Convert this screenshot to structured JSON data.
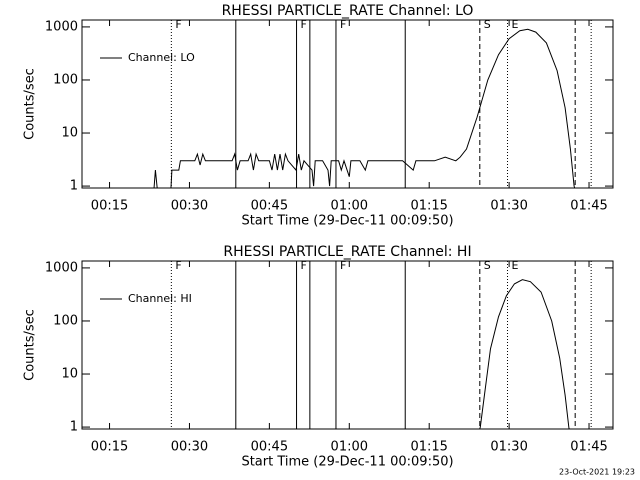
{
  "chart_data": [
    {
      "type": "line",
      "title": "RHESSI PARTICLE_RATE Channel: LO",
      "xlabel": "Start Time (29-Dec-11 00:09:50)",
      "ylabel": "Counts/sec",
      "log_y": true,
      "legend": "upper left",
      "xlim": [
        9.83,
        109.5
      ],
      "ylim": [
        0.92,
        1350
      ],
      "xticks": [
        {
          "value": 15,
          "label": "00:15"
        },
        {
          "value": 30,
          "label": "00:30"
        },
        {
          "value": 45,
          "label": "00:45"
        },
        {
          "value": 60,
          "label": "01:00"
        },
        {
          "value": 75,
          "label": "01:15"
        },
        {
          "value": 90,
          "label": "01:30"
        },
        {
          "value": 105,
          "label": "01:45"
        }
      ],
      "yticks": [
        1,
        10,
        100,
        1000
      ],
      "x": [
        20,
        23.3,
        23.6,
        24.0,
        26.5,
        26.7,
        28,
        28.3,
        31,
        31.5,
        32,
        32.5,
        33,
        34,
        38,
        38.5,
        39,
        39.5,
        41,
        41.5,
        42,
        42.5,
        43,
        45,
        45.5,
        46,
        46.5,
        47,
        47.5,
        48,
        48.5,
        50,
        50.5,
        51,
        51.5,
        53,
        53.3,
        53.6,
        55,
        56,
        56.3,
        56.6,
        58,
        58.5,
        59,
        60,
        60.3,
        62,
        63,
        63.5,
        66,
        70,
        72,
        72.5,
        76,
        78,
        80,
        80.8,
        82,
        84,
        86,
        88,
        90,
        92,
        93.5,
        95,
        97,
        99,
        100.5,
        101.5,
        102.2,
        102.5
      ],
      "series": [
        {
          "name": "Channel: LO",
          "color": "#000000",
          "values": [
            0.8,
            0.8,
            2,
            0.8,
            0.8,
            2,
            2,
            3,
            3,
            4,
            2.5,
            4,
            3,
            3,
            3,
            4,
            2,
            3,
            3,
            4,
            2,
            4,
            3,
            3,
            2,
            4,
            2,
            4,
            2,
            4,
            3,
            2,
            4,
            2,
            3,
            2,
            1,
            3,
            3,
            2,
            1,
            3,
            3,
            2,
            3,
            1.5,
            3,
            3,
            2,
            3,
            3,
            3,
            2,
            3,
            3,
            3.5,
            3,
            3.5,
            5,
            20,
            100,
            300,
            600,
            850,
            900,
            800,
            500,
            150,
            30,
            5,
            1,
            0.8
          ]
        }
      ],
      "markers": [
        {
          "x": 26.6,
          "style": "dotted",
          "label": "F"
        },
        {
          "x": 38.7,
          "style": "solid"
        },
        {
          "x": 50.1,
          "style": "solid",
          "label": "F"
        },
        {
          "x": 52.6,
          "style": "solid"
        },
        {
          "x": 57.5,
          "style": "solid",
          "label": "F"
        },
        {
          "x": 70.5,
          "style": "solid"
        },
        {
          "x": 84.5,
          "style": "dashed",
          "label": "S"
        },
        {
          "x": 89.7,
          "style": "dotted",
          "label": "E"
        },
        {
          "x": 102.4,
          "style": "dashed"
        },
        {
          "x": 105.4,
          "style": "dotted"
        }
      ]
    },
    {
      "type": "line",
      "title": "RHESSI PARTICLE_RATE Channel: HI",
      "xlabel": "Start Time (29-Dec-11 00:09:50)",
      "ylabel": "Counts/sec",
      "log_y": true,
      "legend": "upper left",
      "xlim": [
        9.83,
        109.5
      ],
      "ylim": [
        0.92,
        1350
      ],
      "xticks": [
        {
          "value": 15,
          "label": "00:15"
        },
        {
          "value": 30,
          "label": "00:30"
        },
        {
          "value": 45,
          "label": "00:45"
        },
        {
          "value": 60,
          "label": "01:00"
        },
        {
          "value": 75,
          "label": "01:15"
        },
        {
          "value": 90,
          "label": "01:30"
        },
        {
          "value": 105,
          "label": "01:45"
        }
      ],
      "yticks": [
        1,
        10,
        100,
        1000
      ],
      "x": [
        84.3,
        84.6,
        85.5,
        86.5,
        88,
        89.5,
        91,
        92.5,
        94,
        96,
        98,
        99.5,
        100.5,
        101.2,
        101.4
      ],
      "series": [
        {
          "name": "Channel: HI",
          "color": "#000000",
          "values": [
            0.8,
            1,
            5,
            30,
            120,
            300,
            500,
            600,
            550,
            350,
            100,
            20,
            4,
            1,
            0.8
          ]
        }
      ],
      "markers": [
        {
          "x": 26.6,
          "style": "dotted",
          "label": "F"
        },
        {
          "x": 38.7,
          "style": "solid"
        },
        {
          "x": 50.1,
          "style": "solid",
          "label": "F"
        },
        {
          "x": 52.6,
          "style": "solid"
        },
        {
          "x": 57.5,
          "style": "solid",
          "label": "F"
        },
        {
          "x": 70.5,
          "style": "solid"
        },
        {
          "x": 84.5,
          "style": "dashed",
          "label": "S"
        },
        {
          "x": 89.7,
          "style": "dotted",
          "label": "E"
        },
        {
          "x": 102.4,
          "style": "dashed"
        },
        {
          "x": 105.4,
          "style": "dotted"
        }
      ]
    }
  ],
  "footer": "23-Oct-2021 19:23"
}
